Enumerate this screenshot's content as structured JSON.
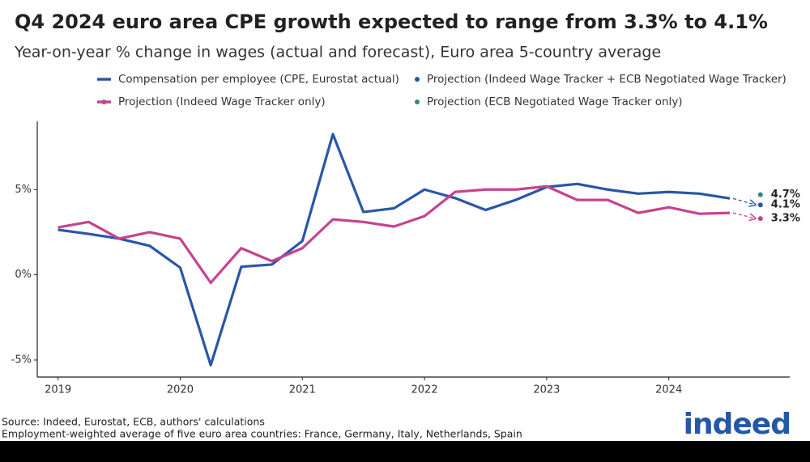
{
  "chart_data": {
    "type": "line",
    "title": "Q4 2024 euro area CPE growth expected to range from 3.3% to 4.1%",
    "subtitle": "Year-on-year % change in wages (actual and forecast), Euro area 5-country average",
    "xlim": [
      2018.83,
      2024.99
    ],
    "xticks": [
      2019,
      2020,
      2021,
      2022,
      2023,
      2024
    ],
    "ylim": [
      -6,
      9
    ],
    "yticks": [
      {
        "value": -5,
        "label": "-5%"
      },
      {
        "value": 0,
        "label": "0%"
      },
      {
        "value": 5,
        "label": "5%"
      }
    ],
    "grid": false,
    "series": [
      {
        "name": "Compensation per employee (CPE, Eurostat actual)",
        "color": "#2a56a6",
        "marker": "line",
        "x": [
          2019,
          2019.25,
          2019.5,
          2019.75,
          2020,
          2020.25,
          2020.5,
          2020.75,
          2021,
          2021.25,
          2021.5,
          2021.75,
          2022,
          2022.25,
          2022.5,
          2022.75,
          2023,
          2023.25,
          2023.5,
          2023.75,
          2024,
          2024.25,
          2024.5
        ],
        "values": [
          2.64,
          2.4,
          2.12,
          1.7,
          0.42,
          -5.3,
          0.47,
          0.6,
          1.98,
          8.25,
          3.68,
          3.9,
          5.0,
          4.5,
          3.8,
          4.4,
          5.15,
          5.33,
          5.0,
          4.76,
          4.86,
          4.76,
          4.48
        ]
      },
      {
        "name": "Projection (Indeed Wage Tracker only)",
        "color": "#c5448e",
        "marker": "line-dot",
        "x": [
          2019,
          2019.25,
          2019.5,
          2019.75,
          2020,
          2020.25,
          2020.5,
          2020.75,
          2021,
          2021.25,
          2021.5,
          2021.75,
          2022,
          2022.25,
          2022.5,
          2022.75,
          2023,
          2023.25,
          2023.5,
          2023.75,
          2024,
          2024.25,
          2024.5
        ],
        "values": [
          2.78,
          3.1,
          2.12,
          2.5,
          2.12,
          -0.47,
          1.56,
          0.8,
          1.56,
          3.25,
          3.1,
          2.83,
          3.44,
          4.86,
          5.0,
          5.0,
          5.19,
          4.39,
          4.39,
          3.63,
          3.96,
          3.58,
          3.63
        ],
        "end": {
          "x": 2024.75,
          "value": 3.3,
          "label": "3.3%"
        }
      },
      {
        "name": "Projection (Indeed Wage Tracker + ECB Negotiated Wage Tracker)",
        "color": "#2a56a6",
        "marker": "dot",
        "x": [
          2024.75
        ],
        "values": [
          4.1
        ],
        "value_labels": [
          "4.1%"
        ],
        "dashed_from": 0
      },
      {
        "name": "Projection (ECB Negotiated Wage Tracker only)",
        "color": "#2e8b74",
        "marker": "dot",
        "x": [
          2024.75
        ],
        "values": [
          4.7
        ],
        "value_labels": [
          "4.7%"
        ]
      }
    ],
    "source": "Source: Indeed, Eurostat, ECB, authors' calculations",
    "note": "Employment-weighted average of five euro area countries: France, Germany, Italy, Netherlands, Spain",
    "logo": "indeed"
  }
}
